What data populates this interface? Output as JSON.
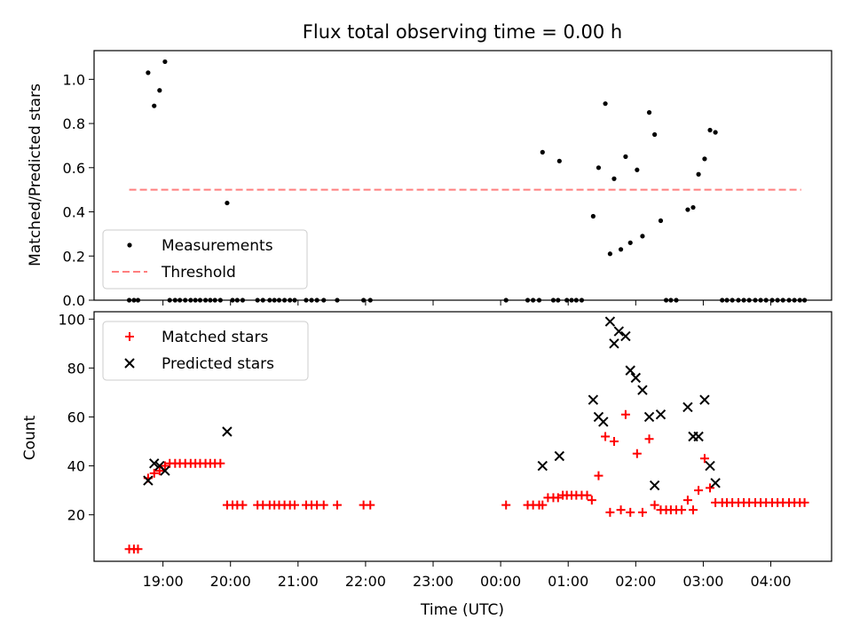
{
  "chart_data": {
    "title": "Flux total observing time = 0.00 h",
    "xlabel": "Time (UTC)",
    "xticks": [
      "19:00",
      "20:00",
      "21:00",
      "22:00",
      "23:00",
      "00:00",
      "01:00",
      "02:00",
      "03:00",
      "04:00"
    ],
    "xrange_hours": [
      17.98,
      28.9
    ],
    "panels": [
      {
        "type": "scatter",
        "ylabel": "Matched/Predicted stars",
        "ylim": [
          0,
          1.13
        ],
        "yticks": [
          "0.0",
          "0.2",
          "0.4",
          "0.6",
          "0.8",
          "1.0"
        ],
        "legend": {
          "position": "lower-left",
          "entries": [
            "Measurements",
            "Threshold"
          ]
        },
        "series": [
          {
            "name": "Measurements",
            "color": "#000000",
            "marker": "dot",
            "points": [
              [
                18.5,
                0
              ],
              [
                18.57,
                0
              ],
              [
                18.63,
                0
              ],
              [
                18.78,
                1.03
              ],
              [
                18.87,
                0.88
              ],
              [
                18.95,
                0.95
              ],
              [
                19.03,
                1.08
              ],
              [
                19.1,
                0
              ],
              [
                19.18,
                0
              ],
              [
                19.25,
                0
              ],
              [
                19.33,
                0
              ],
              [
                19.41,
                0
              ],
              [
                19.48,
                0
              ],
              [
                19.55,
                0
              ],
              [
                19.63,
                0
              ],
              [
                19.7,
                0
              ],
              [
                19.77,
                0
              ],
              [
                19.85,
                0
              ],
              [
                19.95,
                0.44
              ],
              [
                20.03,
                0
              ],
              [
                20.1,
                0
              ],
              [
                20.18,
                0
              ],
              [
                20.4,
                0
              ],
              [
                20.48,
                0
              ],
              [
                20.58,
                0
              ],
              [
                20.65,
                0
              ],
              [
                20.72,
                0
              ],
              [
                20.8,
                0
              ],
              [
                20.88,
                0
              ],
              [
                20.95,
                0
              ],
              [
                21.12,
                0
              ],
              [
                21.2,
                0
              ],
              [
                21.28,
                0
              ],
              [
                21.38,
                0
              ],
              [
                21.58,
                0
              ],
              [
                21.97,
                0
              ],
              [
                22.07,
                0
              ],
              [
                24.08,
                0
              ],
              [
                24.4,
                0
              ],
              [
                24.48,
                0
              ],
              [
                24.57,
                0
              ],
              [
                24.62,
                0.67
              ],
              [
                24.78,
                0
              ],
              [
                24.85,
                0
              ],
              [
                24.87,
                0.63
              ],
              [
                24.98,
                0
              ],
              [
                25.05,
                0
              ],
              [
                25.12,
                0
              ],
              [
                25.2,
                0
              ],
              [
                25.37,
                0.38
              ],
              [
                25.45,
                0.6
              ],
              [
                25.55,
                0.89
              ],
              [
                25.62,
                0.21
              ],
              [
                25.68,
                0.55
              ],
              [
                25.78,
                0.23
              ],
              [
                25.85,
                0.65
              ],
              [
                25.92,
                0.26
              ],
              [
                26.02,
                0.59
              ],
              [
                26.1,
                0.29
              ],
              [
                26.2,
                0.85
              ],
              [
                26.28,
                0.75
              ],
              [
                26.37,
                0.36
              ],
              [
                26.45,
                0
              ],
              [
                26.52,
                0
              ],
              [
                26.6,
                0
              ],
              [
                26.77,
                0.41
              ],
              [
                26.85,
                0.42
              ],
              [
                26.93,
                0.57
              ],
              [
                27.02,
                0.64
              ],
              [
                27.1,
                0.77
              ],
              [
                27.18,
                0.76
              ],
              [
                27.28,
                0
              ],
              [
                27.35,
                0
              ],
              [
                27.43,
                0
              ],
              [
                27.52,
                0
              ],
              [
                27.6,
                0
              ],
              [
                27.68,
                0
              ],
              [
                27.77,
                0
              ],
              [
                27.85,
                0
              ],
              [
                27.93,
                0
              ],
              [
                28.02,
                0
              ],
              [
                28.1,
                0
              ],
              [
                28.18,
                0
              ],
              [
                28.27,
                0
              ],
              [
                28.35,
                0
              ],
              [
                28.43,
                0
              ],
              [
                28.5,
                0
              ]
            ]
          },
          {
            "name": "Threshold",
            "color": "#ff7f7f",
            "style": "dashed",
            "points": [
              [
                18.5,
                0.5
              ],
              [
                28.45,
                0.5
              ]
            ]
          }
        ]
      },
      {
        "type": "scatter",
        "ylabel": "Count",
        "ylim": [
          1,
          103
        ],
        "yticks": [
          "20",
          "40",
          "60",
          "80",
          "100"
        ],
        "legend": {
          "position": "upper-left",
          "entries": [
            "Matched stars",
            "Predicted stars"
          ]
        },
        "series": [
          {
            "name": "Matched stars",
            "color": "#ff0000",
            "marker": "plus",
            "points": [
              [
                18.5,
                6
              ],
              [
                18.57,
                6
              ],
              [
                18.63,
                6
              ],
              [
                18.78,
                35
              ],
              [
                18.87,
                37
              ],
              [
                18.95,
                38
              ],
              [
                19.03,
                40
              ],
              [
                19.1,
                41
              ],
              [
                19.18,
                41
              ],
              [
                19.25,
                41
              ],
              [
                19.33,
                41
              ],
              [
                19.41,
                41
              ],
              [
                19.48,
                41
              ],
              [
                19.55,
                41
              ],
              [
                19.63,
                41
              ],
              [
                19.7,
                41
              ],
              [
                19.77,
                41
              ],
              [
                19.85,
                41
              ],
              [
                19.95,
                24
              ],
              [
                20.03,
                24
              ],
              [
                20.1,
                24
              ],
              [
                20.18,
                24
              ],
              [
                20.4,
                24
              ],
              [
                20.48,
                24
              ],
              [
                20.58,
                24
              ],
              [
                20.65,
                24
              ],
              [
                20.72,
                24
              ],
              [
                20.8,
                24
              ],
              [
                20.88,
                24
              ],
              [
                20.95,
                24
              ],
              [
                21.12,
                24
              ],
              [
                21.2,
                24
              ],
              [
                21.28,
                24
              ],
              [
                21.38,
                24
              ],
              [
                21.58,
                24
              ],
              [
                21.97,
                24
              ],
              [
                22.07,
                24
              ],
              [
                24.08,
                24
              ],
              [
                24.4,
                24
              ],
              [
                24.48,
                24
              ],
              [
                24.57,
                24
              ],
              [
                24.62,
                24
              ],
              [
                24.7,
                27
              ],
              [
                24.78,
                27
              ],
              [
                24.85,
                27
              ],
              [
                24.92,
                28
              ],
              [
                24.98,
                28
              ],
              [
                25.05,
                28
              ],
              [
                25.12,
                28
              ],
              [
                25.2,
                28
              ],
              [
                25.28,
                28
              ],
              [
                25.35,
                26
              ],
              [
                25.45,
                36
              ],
              [
                25.55,
                52
              ],
              [
                25.62,
                21
              ],
              [
                25.68,
                50
              ],
              [
                25.78,
                22
              ],
              [
                25.85,
                61
              ],
              [
                25.92,
                21
              ],
              [
                26.02,
                45
              ],
              [
                26.1,
                21
              ],
              [
                26.2,
                51
              ],
              [
                26.28,
                24
              ],
              [
                26.37,
                22
              ],
              [
                26.45,
                22
              ],
              [
                26.52,
                22
              ],
              [
                26.6,
                22
              ],
              [
                26.68,
                22
              ],
              [
                26.77,
                26
              ],
              [
                26.85,
                22
              ],
              [
                26.93,
                30
              ],
              [
                27.02,
                43
              ],
              [
                27.1,
                31
              ],
              [
                27.18,
                25
              ],
              [
                27.28,
                25
              ],
              [
                27.35,
                25
              ],
              [
                27.43,
                25
              ],
              [
                27.52,
                25
              ],
              [
                27.6,
                25
              ],
              [
                27.68,
                25
              ],
              [
                27.77,
                25
              ],
              [
                27.85,
                25
              ],
              [
                27.93,
                25
              ],
              [
                28.02,
                25
              ],
              [
                28.1,
                25
              ],
              [
                28.18,
                25
              ],
              [
                28.27,
                25
              ],
              [
                28.35,
                25
              ],
              [
                28.43,
                25
              ],
              [
                28.5,
                25
              ]
            ]
          },
          {
            "name": "Predicted stars",
            "color": "#000000",
            "marker": "x",
            "points": [
              [
                18.78,
                34
              ],
              [
                18.87,
                41
              ],
              [
                18.95,
                40
              ],
              [
                19.03,
                38
              ],
              [
                19.95,
                54
              ],
              [
                24.62,
                40
              ],
              [
                24.87,
                44
              ],
              [
                25.37,
                67
              ],
              [
                25.45,
                60
              ],
              [
                25.52,
                58
              ],
              [
                25.62,
                99
              ],
              [
                25.68,
                90
              ],
              [
                25.75,
                95
              ],
              [
                25.85,
                93
              ],
              [
                25.92,
                79
              ],
              [
                26.0,
                76
              ],
              [
                26.1,
                71
              ],
              [
                26.2,
                60
              ],
              [
                26.28,
                32
              ],
              [
                26.37,
                61
              ],
              [
                26.77,
                64
              ],
              [
                26.85,
                52
              ],
              [
                26.93,
                52
              ],
              [
                27.02,
                67
              ],
              [
                27.1,
                40
              ],
              [
                27.18,
                33
              ]
            ]
          }
        ]
      }
    ]
  }
}
